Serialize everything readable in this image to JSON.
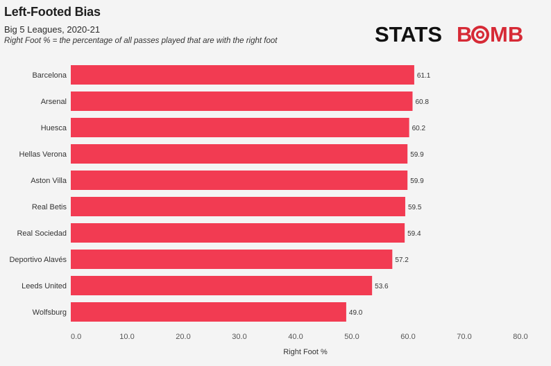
{
  "header": {
    "title": "Left-Footed Bias",
    "subtitle": "Big 5 Leagues, 2020-21",
    "note": "Right Foot % = the percentage of all passes played that are with the right foot"
  },
  "logo": {
    "text_left": "STATS",
    "text_right_prefix": "B",
    "text_right_suffix": "MB",
    "colors": {
      "dark": "#111111",
      "red": "#d62a36"
    },
    "icon": "target-o-icon"
  },
  "chart_data": {
    "type": "bar",
    "orientation": "horizontal",
    "title": "Left-Footed Bias",
    "subtitle": "Big 5 Leagues, 2020-21",
    "xlabel": "Right Foot %",
    "ylabel": "",
    "categories": [
      "Barcelona",
      "Arsenal",
      "Huesca",
      "Hellas Verona",
      "Aston Villa",
      "Real Betis",
      "Real Sociedad",
      "Deportivo Alavés",
      "Leeds United",
      "Wolfsburg"
    ],
    "values": [
      61.1,
      60.8,
      60.2,
      59.9,
      59.9,
      59.5,
      59.4,
      57.2,
      53.6,
      49.0
    ],
    "value_labels": [
      "61.1",
      "60.8",
      "60.2",
      "59.9",
      "59.9",
      "59.5",
      "59.4",
      "57.2",
      "53.6",
      "49.0"
    ],
    "xlim": [
      0,
      80
    ],
    "xticks": [
      0,
      10,
      20,
      30,
      40,
      50,
      60,
      70,
      80
    ],
    "xtick_labels": [
      "0.0",
      "10.0",
      "20.0",
      "30.0",
      "40.0",
      "50.0",
      "60.0",
      "70.0",
      "80.0"
    ],
    "bar_color": "#f23b52",
    "grid": false,
    "legend": "none"
  }
}
